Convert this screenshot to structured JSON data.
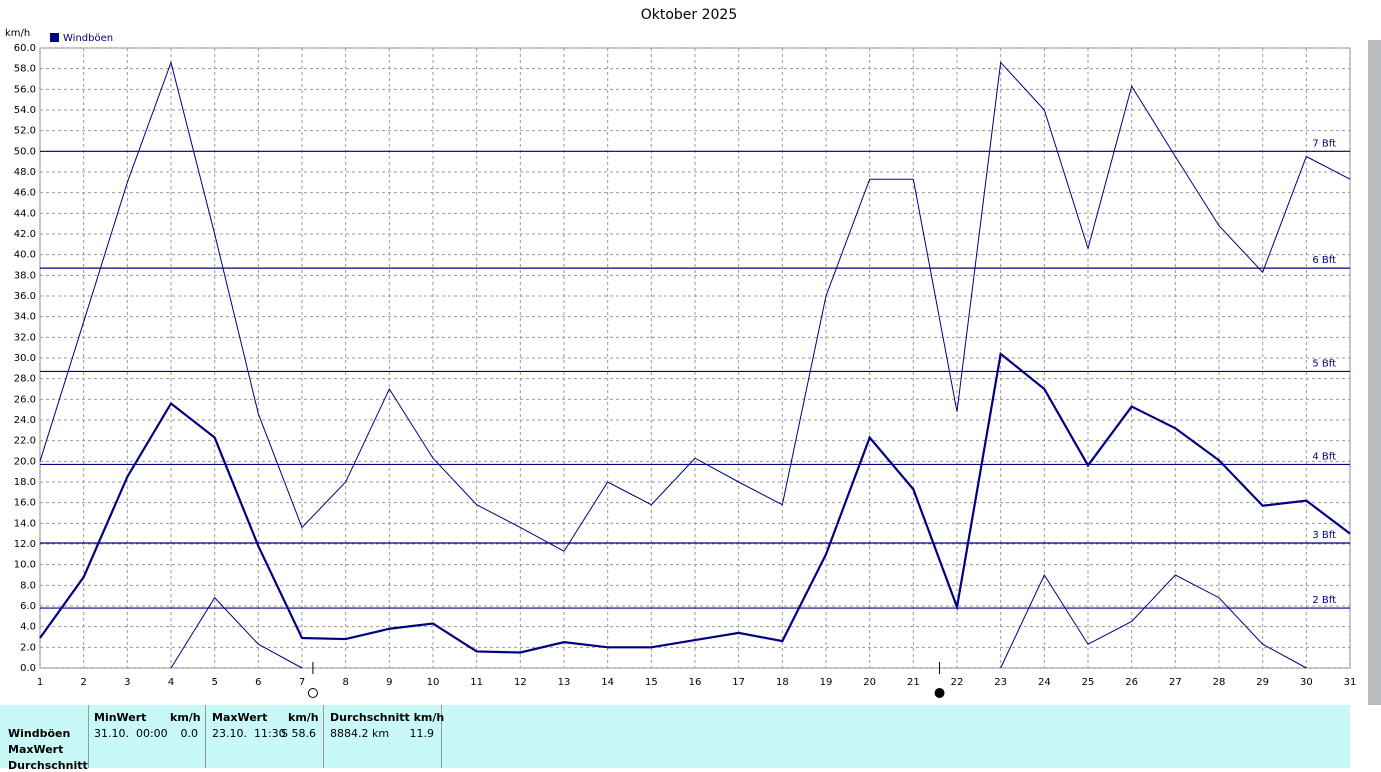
{
  "chart_data": {
    "type": "line",
    "title": "Oktober 2025",
    "y_label": "km/h",
    "legend": "Windböen",
    "color": "#000080",
    "x": [
      1,
      2,
      3,
      4,
      5,
      6,
      7,
      8,
      9,
      10,
      11,
      12,
      13,
      14,
      15,
      16,
      17,
      18,
      19,
      20,
      21,
      22,
      23,
      24,
      25,
      26,
      27,
      28,
      29,
      30,
      31
    ],
    "series": [
      {
        "values": [
          20.0,
          33.5,
          47.0,
          58.6,
          42.0,
          24.6,
          13.6,
          18.0,
          27.0,
          20.3,
          15.8,
          13.6,
          11.3,
          18.0,
          15.8,
          20.3,
          18.0,
          15.8,
          36.0,
          47.3,
          47.3,
          24.8,
          58.6,
          54.0,
          40.6,
          56.3,
          49.5,
          42.8,
          38.3,
          49.5,
          47.3
        ],
        "width": 1
      },
      {
        "values": [
          2.9,
          8.8,
          18.5,
          25.6,
          22.3,
          11.8,
          2.9,
          2.8,
          3.8,
          4.3,
          1.6,
          1.5,
          2.5,
          2.0,
          2.0,
          2.7,
          3.4,
          2.6,
          11.0,
          22.3,
          17.3,
          5.9,
          30.4,
          27.0,
          19.6,
          25.3,
          23.2,
          20.1,
          15.7,
          16.2,
          13.0
        ],
        "width": 2.2
      },
      {
        "values": [
          null,
          null,
          null,
          0,
          6.8,
          2.3,
          0,
          null,
          null,
          null,
          null,
          null,
          null,
          null,
          null,
          null,
          null,
          null,
          null,
          null,
          null,
          null,
          0,
          9.0,
          2.3,
          4.5,
          9.0,
          6.8,
          2.3,
          0,
          null
        ],
        "width": 1
      }
    ],
    "xlim": [
      1,
      31
    ],
    "xticks": [
      1,
      2,
      3,
      4,
      5,
      6,
      7,
      8,
      9,
      10,
      11,
      12,
      13,
      14,
      15,
      16,
      17,
      18,
      19,
      20,
      21,
      22,
      23,
      24,
      25,
      26,
      27,
      28,
      29,
      30,
      31
    ],
    "ylim": [
      0,
      60
    ],
    "yticks": [
      {
        "value": 0,
        "label": "0.0"
      },
      {
        "value": 2,
        "label": "2.0"
      },
      {
        "value": 4,
        "label": "4.0"
      },
      {
        "value": 6,
        "label": "6.0"
      },
      {
        "value": 8,
        "label": "8.0"
      },
      {
        "value": 10,
        "label": "10.0"
      },
      {
        "value": 12,
        "label": "12.0"
      },
      {
        "value": 14,
        "label": "14.0"
      },
      {
        "value": 16,
        "label": "16.0"
      },
      {
        "value": 18,
        "label": "18.0"
      },
      {
        "value": 20,
        "label": "20.0"
      },
      {
        "value": 22,
        "label": "22.0"
      },
      {
        "value": 24,
        "label": "24.0"
      },
      {
        "value": 26,
        "label": "26.0"
      },
      {
        "value": 28,
        "label": "28.0"
      },
      {
        "value": 30,
        "label": "30.0"
      },
      {
        "value": 32,
        "label": "32.0"
      },
      {
        "value": 34,
        "label": "34.0"
      },
      {
        "value": 36,
        "label": "36.0"
      },
      {
        "value": 38,
        "label": "38.0"
      },
      {
        "value": 40,
        "label": "40.0"
      },
      {
        "value": 42,
        "label": "42.0"
      },
      {
        "value": 44,
        "label": "44.0"
      },
      {
        "value": 46,
        "label": "46.0"
      },
      {
        "value": 48,
        "label": "48.0"
      },
      {
        "value": 50,
        "label": "50.0"
      },
      {
        "value": 52,
        "label": "52.0"
      },
      {
        "value": 54,
        "label": "54.0"
      },
      {
        "value": 56,
        "label": "56.0"
      },
      {
        "value": 58,
        "label": "58.0"
      },
      {
        "value": 60,
        "label": "60.0"
      }
    ],
    "grid": true,
    "reference_lines": [
      {
        "value": 5.8,
        "label": "2 Bft"
      },
      {
        "value": 12.1,
        "label": "3 Bft"
      },
      {
        "value": 19.7,
        "label": "4 Bft"
      },
      {
        "value": 28.7,
        "label": "5 Bft"
      },
      {
        "value": 38.7,
        "label": "6 Bft"
      },
      {
        "value": 50.0,
        "label": "7 Bft"
      }
    ],
    "moon_phases": [
      {
        "x": 7.25,
        "phase": "full"
      },
      {
        "x": 21.6,
        "phase": "new"
      }
    ]
  },
  "table": {
    "header": [
      "MinWert",
      "km/h",
      "MaxWert",
      "km/h",
      "Durchschnitt km/h"
    ],
    "row_labels": [
      "Windböen",
      "MaxWert",
      "Durchschnitt"
    ],
    "cells": [
      "31.10.  00:00",
      "0.0",
      "23.10.  11:30",
      "S 58.6",
      "8884.2 km",
      "11.9"
    ]
  }
}
